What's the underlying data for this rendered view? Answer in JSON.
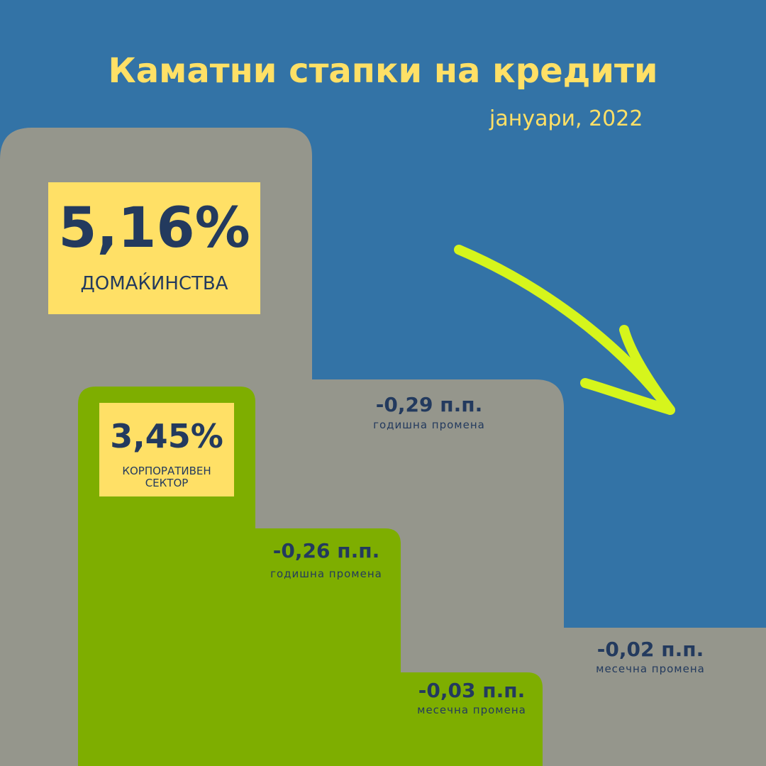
{
  "header": {
    "title": "Каматни стапки на кредити",
    "subtitle": "јануари, 2022"
  },
  "households": {
    "rate": "5,16%",
    "label": "ДОМАЌИНСТВА",
    "annual_change": {
      "value": "-0,29 п.п.",
      "label": "годишна промена"
    },
    "monthly_change": {
      "value": "-0,02 п.п.",
      "label": "месечна промена"
    }
  },
  "corporate": {
    "rate": "3,45%",
    "label": "КОРПОРАТИВЕН СЕКТОР",
    "annual_change": {
      "value": "-0,26 п.п.",
      "label": "годишна промена"
    },
    "monthly_change": {
      "value": "-0,03 п.п.",
      "label": "месечна промена"
    }
  }
}
